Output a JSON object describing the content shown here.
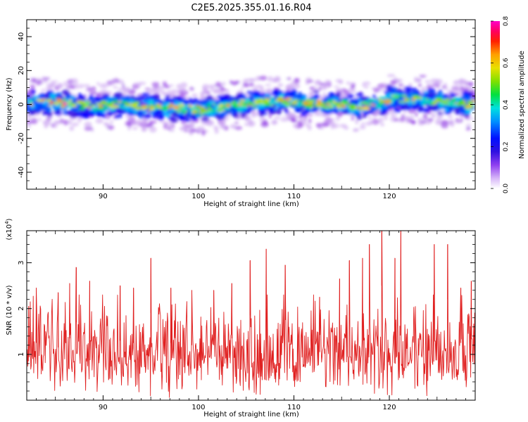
{
  "title": "C2E5.2025.355.01.16.R04",
  "colors": {
    "snr_line": "#e02020",
    "axes": "#000000"
  },
  "colormap": [
    "#ffffff",
    "#c8a0f0",
    "#8a2be2",
    "#3a10e0",
    "#0000ff",
    "#0050ff",
    "#00b4ff",
    "#00e6c8",
    "#00e000",
    "#90e000",
    "#e6e600",
    "#ffa000",
    "#ff3000",
    "#ff0000",
    "#ff0088",
    "#ff00cc"
  ],
  "chart_data": [
    {
      "type": "heatmap",
      "xlabel": "Height of straight line (km)",
      "ylabel": "Frequency (Hz)",
      "xlim": [
        82,
        129
      ],
      "ylim": [
        -50,
        50
      ],
      "xticks": [
        "90",
        "100",
        "110",
        "120"
      ],
      "yticks": [
        "40",
        "20",
        "0",
        "-20",
        "-40"
      ],
      "colorbar": {
        "label": "Normalized spectral amplitude",
        "range": [
          0.0,
          0.8
        ],
        "ticks": [
          "0.8",
          "0.6",
          "0.4",
          "0.2",
          "0.0"
        ]
      },
      "band": {
        "center_hz": [
          1,
          1,
          0,
          -1,
          0,
          -1,
          -2,
          -3,
          -1,
          1,
          2,
          1,
          0,
          0,
          -1,
          1,
          3,
          3,
          2,
          1,
          0
        ],
        "center_x_km": [
          83,
          85,
          87,
          89,
          91,
          94,
          97,
          100,
          103,
          106,
          109,
          111,
          113,
          115,
          117,
          119,
          120,
          122,
          124,
          126,
          129
        ],
        "half_width_hz": 9,
        "peak_amplitude": 0.8
      }
    },
    {
      "type": "line",
      "xlabel": "Height of straight line (km)",
      "ylabel": "SNR (10 * v/v)",
      "yscale_label": "(x10",
      "yscale_exp": "4",
      "yscale_close": ")",
      "xlim": [
        82,
        129
      ],
      "ylim": [
        0,
        3.7
      ],
      "xticks": [
        "90",
        "100",
        "110",
        "120"
      ],
      "yticks": [
        "1",
        "2",
        "3"
      ],
      "series": [
        {
          "noise": {
            "base": 1.05,
            "spread": 0.75,
            "floor": 0.05
          },
          "peaks": [
            {
              "x": 82.2,
              "y": 2.05
            },
            {
              "x": 83.0,
              "y": 2.45
            },
            {
              "x": 85.3,
              "y": 2.35
            },
            {
              "x": 86.5,
              "y": 2.55
            },
            {
              "x": 87.2,
              "y": 2.9
            },
            {
              "x": 88.6,
              "y": 2.6
            },
            {
              "x": 91.8,
              "y": 2.5
            },
            {
              "x": 93.2,
              "y": 2.45
            },
            {
              "x": 95.0,
              "y": 3.1
            },
            {
              "x": 97.1,
              "y": 2.45
            },
            {
              "x": 99.3,
              "y": 2.4
            },
            {
              "x": 101.6,
              "y": 2.4
            },
            {
              "x": 103.5,
              "y": 2.55
            },
            {
              "x": 105.4,
              "y": 3.05
            },
            {
              "x": 107.1,
              "y": 3.3
            },
            {
              "x": 109.1,
              "y": 2.95
            },
            {
              "x": 112.7,
              "y": 2.25
            },
            {
              "x": 114.8,
              "y": 2.65
            },
            {
              "x": 115.8,
              "y": 3.05
            },
            {
              "x": 117.2,
              "y": 3.1
            },
            {
              "x": 117.9,
              "y": 3.4
            },
            {
              "x": 119.2,
              "y": 3.7
            },
            {
              "x": 120.6,
              "y": 3.1
            },
            {
              "x": 121.2,
              "y": 3.7
            },
            {
              "x": 124.7,
              "y": 3.4
            },
            {
              "x": 126.1,
              "y": 3.4
            },
            {
              "x": 127.5,
              "y": 2.45
            },
            {
              "x": 128.6,
              "y": 2.6
            }
          ]
        }
      ]
    }
  ]
}
